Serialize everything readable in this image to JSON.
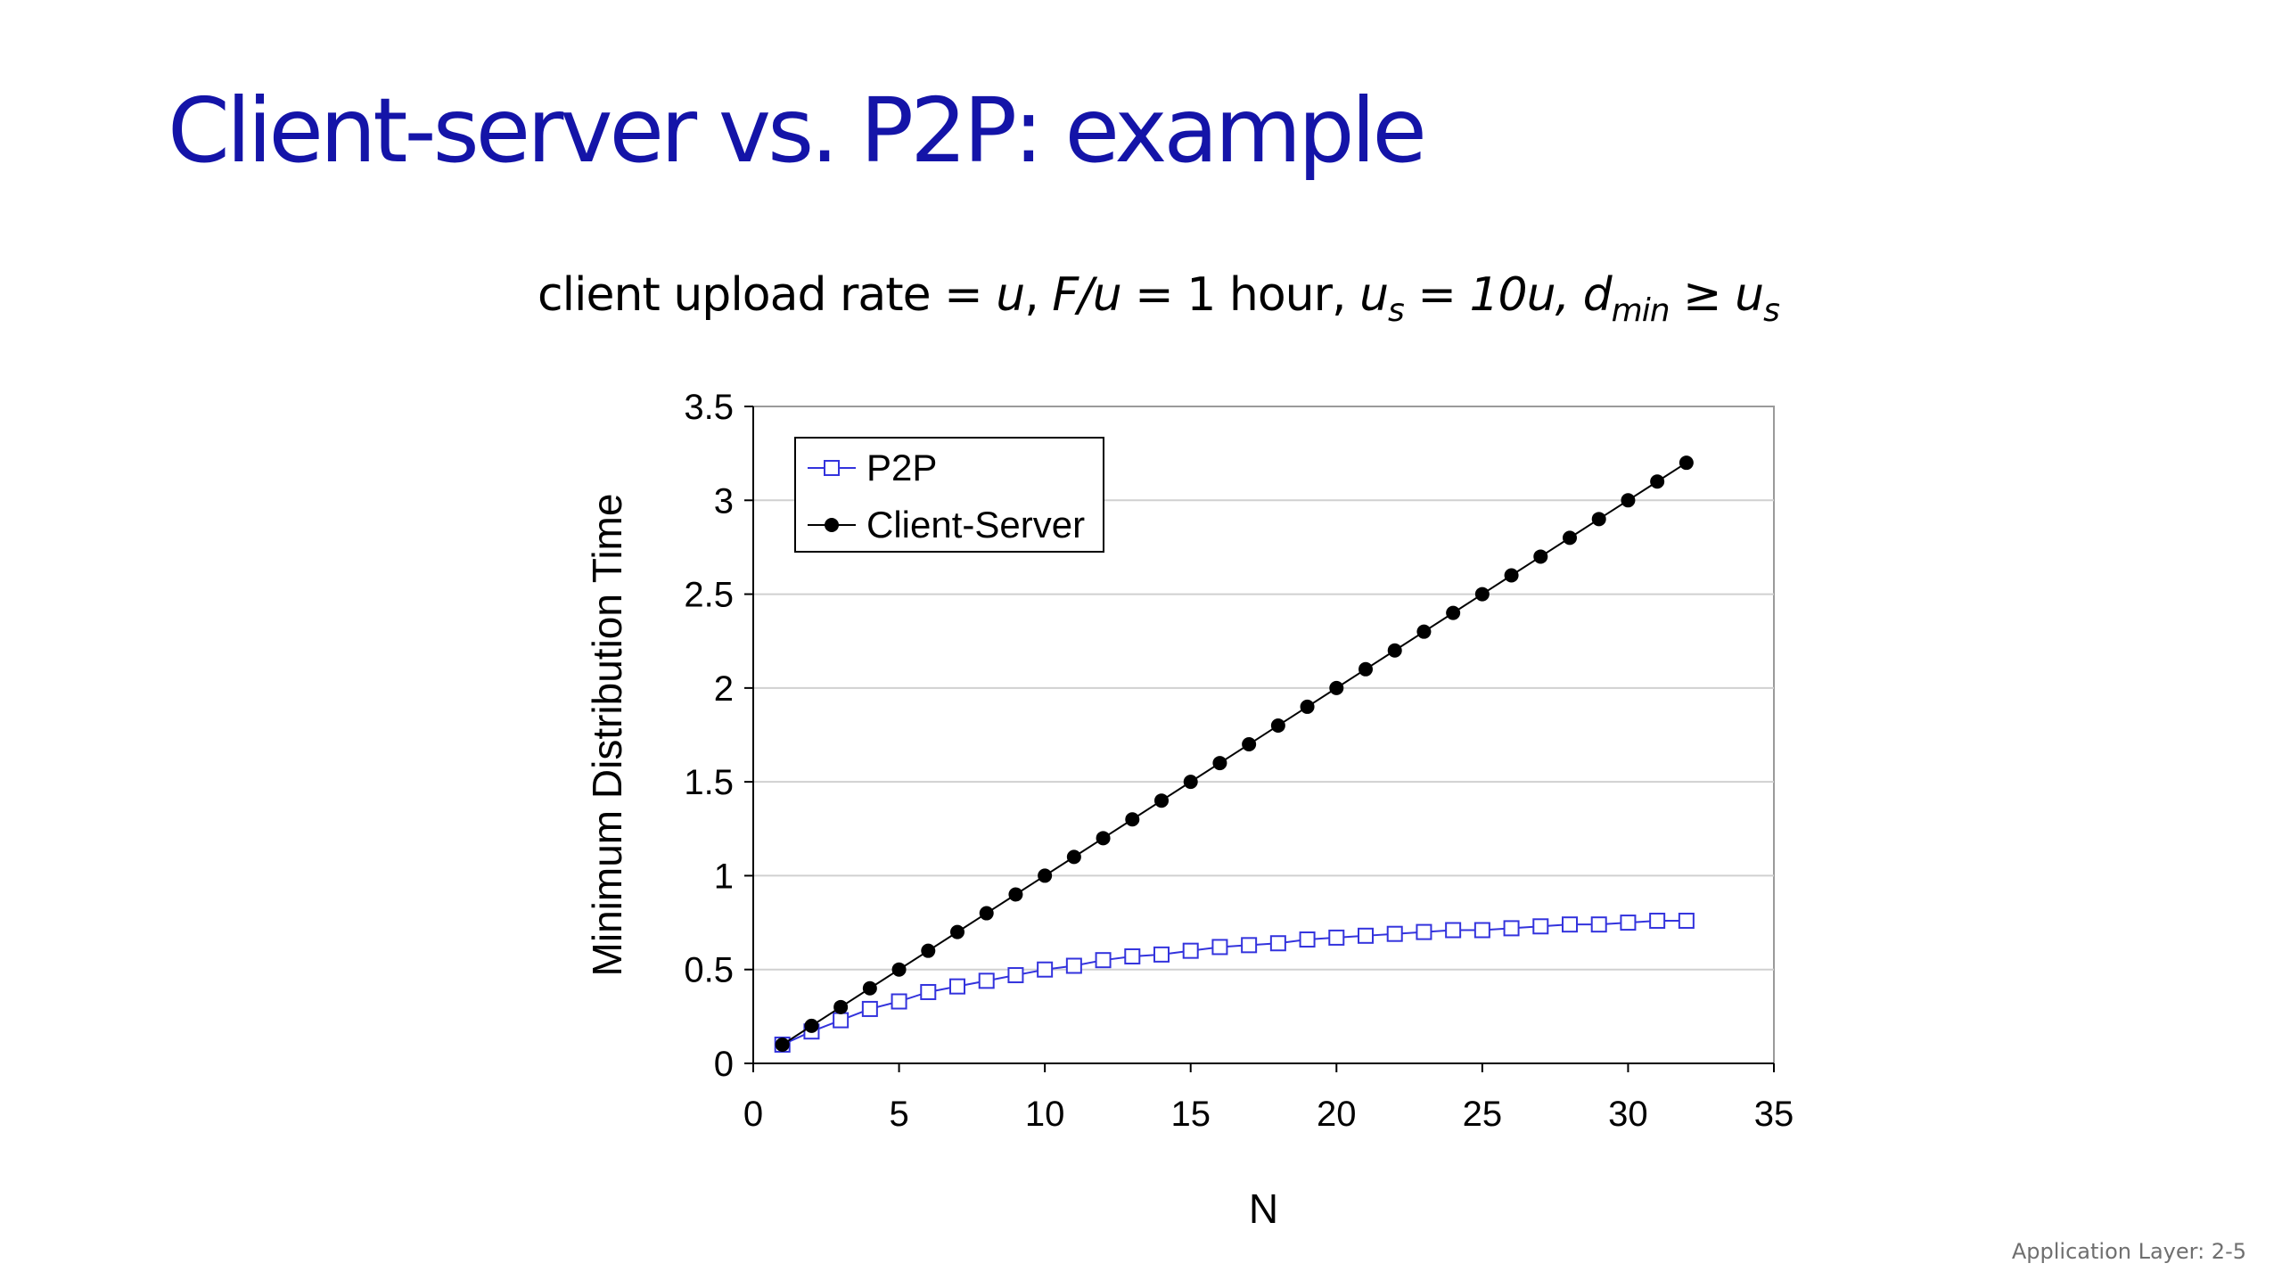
{
  "slide": {
    "title": "Client-server vs. P2P: example",
    "footer": "Application Layer: 2-5"
  },
  "subtitle": {
    "part1": "client upload rate = ",
    "u1": "u",
    "sep1": ",  ",
    "fu": "F/u",
    "part2": " = 1 hour,  ",
    "us_u": "u",
    "us_sub": "s",
    "us_eq": " = 10u,  ",
    "dmin_d": "d",
    "dmin_sub": "min",
    "geq": " ≥ ",
    "us2_u": "u",
    "us2_sub": "s"
  },
  "colors": {
    "title": "#1414a8",
    "p2p": "#3333dd",
    "client_server": "#000000"
  },
  "chart_data": {
    "type": "line",
    "xlabel": "N",
    "ylabel": "Minimum Distribution Time",
    "xlim": [
      0,
      35
    ],
    "ylim": [
      0,
      3.5
    ],
    "xticks": [
      "0",
      "5",
      "10",
      "15",
      "20",
      "25",
      "30",
      "35"
    ],
    "yticks": [
      "0",
      "0.5",
      "1",
      "1.5",
      "2",
      "2.5",
      "3",
      "3.5"
    ],
    "grid": "horizontal",
    "legend_position": "top-left",
    "x": [
      1,
      2,
      3,
      4,
      5,
      6,
      7,
      8,
      9,
      10,
      11,
      12,
      13,
      14,
      15,
      16,
      17,
      18,
      19,
      20,
      21,
      22,
      23,
      24,
      25,
      26,
      27,
      28,
      29,
      30,
      31,
      32
    ],
    "series": [
      {
        "name": "P2P",
        "marker": "open-square",
        "values": [
          0.1,
          0.17,
          0.23,
          0.29,
          0.33,
          0.38,
          0.41,
          0.44,
          0.47,
          0.5,
          0.52,
          0.55,
          0.57,
          0.58,
          0.6,
          0.62,
          0.63,
          0.64,
          0.66,
          0.67,
          0.68,
          0.69,
          0.7,
          0.71,
          0.71,
          0.72,
          0.73,
          0.74,
          0.74,
          0.75,
          0.76,
          0.76
        ]
      },
      {
        "name": "Client-Server",
        "marker": "filled-circle",
        "values": [
          0.1,
          0.2,
          0.3,
          0.4,
          0.5,
          0.6,
          0.7,
          0.8,
          0.9,
          1.0,
          1.1,
          1.2,
          1.3,
          1.4,
          1.5,
          1.6,
          1.7,
          1.8,
          1.9,
          2.0,
          2.1,
          2.2,
          2.3,
          2.4,
          2.5,
          2.6,
          2.7,
          2.8,
          2.9,
          3.0,
          3.1,
          3.2
        ]
      }
    ]
  }
}
